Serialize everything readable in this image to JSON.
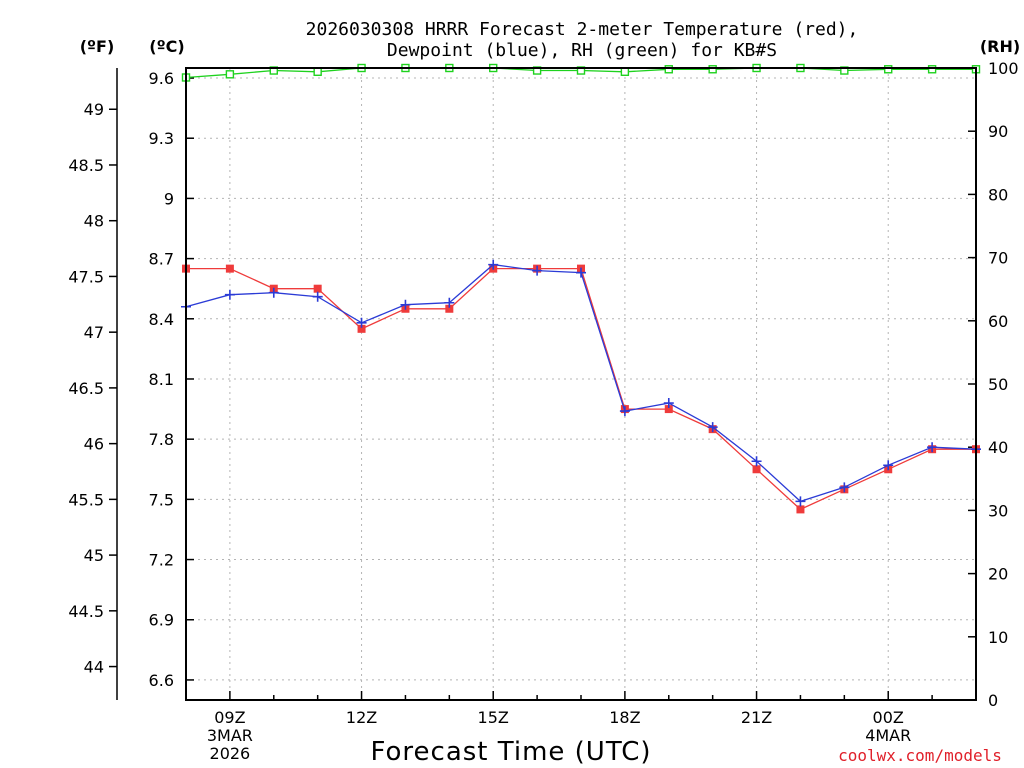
{
  "chart_data": {
    "type": "line",
    "title": "2026030308 HRRR Forecast 2-meter Temperature (red), Dewpoint (blue), RH (green) for KB#S",
    "title_lines": [
      "2026030308 HRRR Forecast 2-meter Temperature (red),",
      "Dewpoint (blue), RH (green) for KB#S"
    ],
    "xlabel": "Forecast Time (UTC)",
    "credit": "coolwx.com/models",
    "units": {
      "left_outer": "(ºF)",
      "left_inner": "(ºC)",
      "right": "(RH)"
    },
    "hours_ticks": [
      1,
      4,
      7,
      10,
      13,
      16
    ],
    "x_tick_labels": [
      {
        "hour": 1,
        "lines": [
          "09Z",
          "3MAR",
          "2026"
        ]
      },
      {
        "hour": 4,
        "lines": [
          "12Z"
        ]
      },
      {
        "hour": 7,
        "lines": [
          "15Z"
        ]
      },
      {
        "hour": 10,
        "lines": [
          "18Z"
        ]
      },
      {
        "hour": 13,
        "lines": [
          "21Z"
        ]
      },
      {
        "hour": 16,
        "lines": [
          "00Z",
          "4MAR"
        ]
      }
    ],
    "xlim": [
      0,
      18
    ],
    "ylim_c": [
      6.5,
      9.65
    ],
    "ylim_rh": [
      0,
      100
    ],
    "y_ticks_c": [
      "6.6",
      "6.9",
      "7.2",
      "7.5",
      "7.8",
      "8.1",
      "8.4",
      "8.7",
      "9",
      "9.3",
      "9.6"
    ],
    "y_ticks_f": [
      "44",
      "44.5",
      "45",
      "45.5",
      "46",
      "46.5",
      "47",
      "47.5",
      "48",
      "48.5",
      "49"
    ],
    "y_ticks_rh": [
      "0",
      "10",
      "20",
      "30",
      "40",
      "50",
      "60",
      "70",
      "80",
      "90",
      "100"
    ],
    "series": [
      {
        "name": "Temperature",
        "color": "#ef3b3b",
        "marker": "square",
        "axis": "c",
        "x": [
          0,
          1,
          2,
          3,
          4,
          5,
          6,
          7,
          8,
          9,
          10,
          11,
          12,
          13,
          14,
          15,
          16,
          17,
          18
        ],
        "values": [
          8.65,
          8.65,
          8.55,
          8.55,
          8.35,
          8.45,
          8.45,
          8.65,
          8.65,
          8.65,
          7.95,
          7.95,
          7.85,
          7.65,
          7.45,
          7.55,
          7.65,
          7.75,
          7.75
        ]
      },
      {
        "name": "Dewpoint",
        "color": "#2b3bd6",
        "marker": "plus",
        "axis": "c",
        "x": [
          0,
          1,
          2,
          3,
          4,
          5,
          6,
          7,
          8,
          9,
          10,
          11,
          12,
          13,
          14,
          15,
          16,
          17,
          18
        ],
        "values": [
          8.46,
          8.52,
          8.53,
          8.51,
          8.38,
          8.47,
          8.48,
          8.67,
          8.64,
          8.63,
          7.94,
          7.98,
          7.86,
          7.69,
          7.49,
          7.56,
          7.67,
          7.76,
          7.75
        ]
      },
      {
        "name": "RH",
        "color": "#1ed21e",
        "marker": "open-square",
        "axis": "rh",
        "x": [
          0,
          1,
          2,
          3,
          4,
          5,
          6,
          7,
          8,
          9,
          10,
          11,
          12,
          13,
          14,
          15,
          16,
          17,
          18
        ],
        "values": [
          98.5,
          99.0,
          99.6,
          99.4,
          100,
          100,
          100,
          100,
          99.6,
          99.6,
          99.4,
          99.8,
          99.8,
          100,
          100,
          99.6,
          99.8,
          99.8,
          99.8
        ]
      }
    ]
  }
}
